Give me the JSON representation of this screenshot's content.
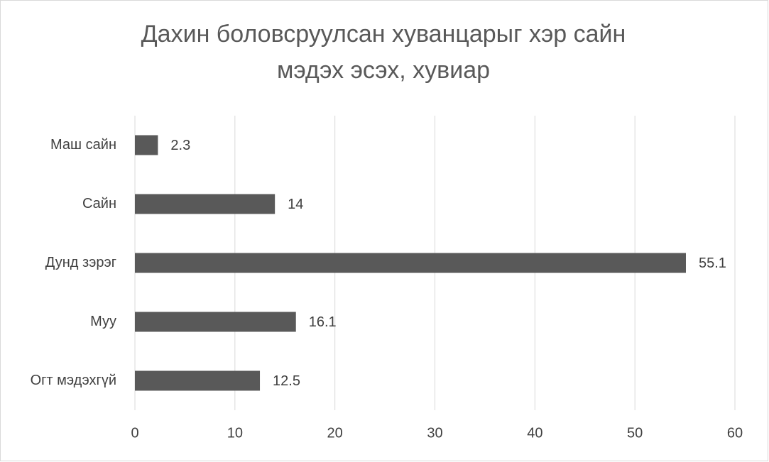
{
  "chart_data": {
    "type": "hbar",
    "title": [
      "Дахин боловсруулсан хуванцарыг хэр сайн",
      "мэдэх эсэх, хувиар"
    ],
    "categories": [
      "Маш сайн",
      "Сайн",
      "Дунд зэрэг",
      "Муу",
      "Огт мэдэхгүй"
    ],
    "values": [
      2.3,
      14,
      55.1,
      16.1,
      12.5
    ],
    "color": "#595959",
    "xlim": [
      0,
      60
    ],
    "xticks": [
      0,
      10,
      20,
      30,
      40,
      50,
      60
    ],
    "grid": true
  }
}
